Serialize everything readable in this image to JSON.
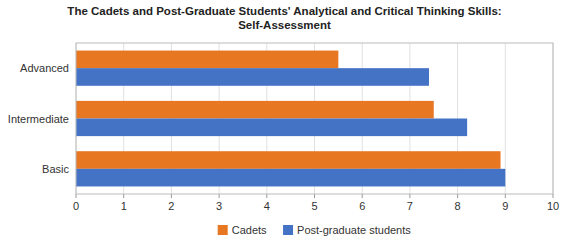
{
  "chart_data": {
    "type": "bar",
    "orientation": "horizontal",
    "title": "The Cadets and Post-Graduate Students' Analytical and Critical Thinking Skills:\nSelf-Assessment",
    "categories": [
      "Basic",
      "Intermediate",
      "Advanced"
    ],
    "series": [
      {
        "name": "Cadets",
        "color": "#E87722",
        "values": [
          8.9,
          7.5,
          5.5
        ]
      },
      {
        "name": "Post-graduate students",
        "color": "#4472C4",
        "values": [
          9.0,
          8.2,
          7.4
        ]
      }
    ],
    "xlim": [
      0,
      10
    ],
    "xticks": [
      0,
      1,
      2,
      3,
      4,
      5,
      6,
      7,
      8,
      9,
      10
    ],
    "grid": true,
    "legend": "bottom"
  }
}
